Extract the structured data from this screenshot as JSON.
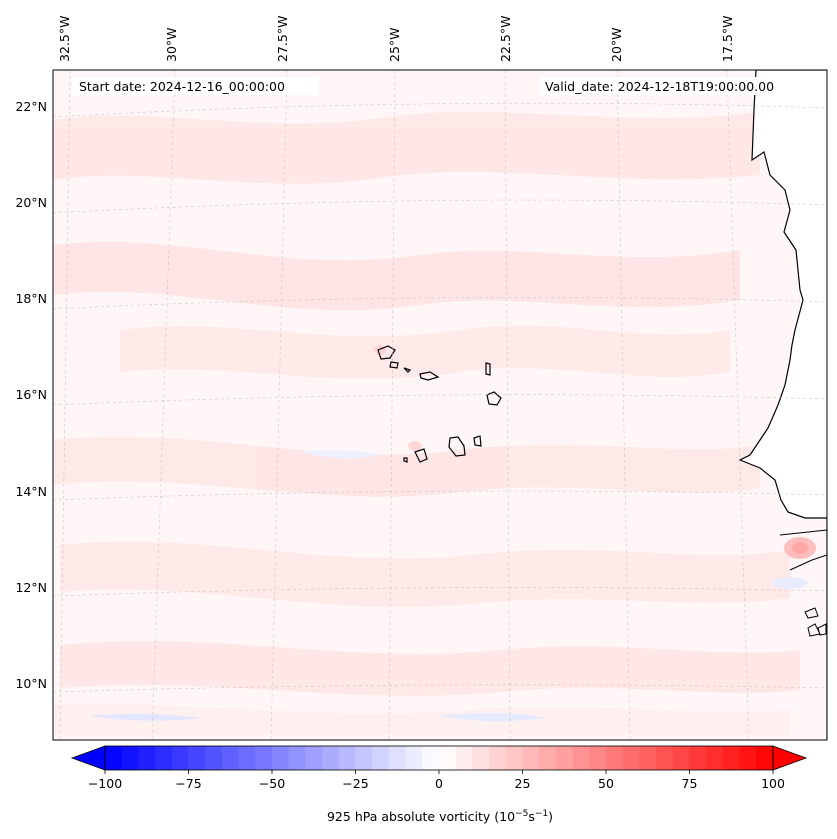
{
  "map": {
    "start_date": "Start date: 2024-12-16_00:00:00",
    "valid_date": "Valid_date: 2024-12-18T19:00:00.00",
    "lon_labels": [
      "32.5°W",
      "30°W",
      "27.5°W",
      "25°W",
      "22.5°W",
      "20°W",
      "17.5°W"
    ],
    "lat_labels": [
      "22°N",
      "20°N",
      "18°N",
      "16°N",
      "14°N",
      "12°N",
      "10°N"
    ],
    "land_color": "#ffffff",
    "ocean_tint": "#fff5f5",
    "positive_color": "#ff0000",
    "negative_color": "#0000ff"
  },
  "colorbar": {
    "label_prefix": "925 hPa absolute vorticity (10",
    "label_exp1": "−5",
    "label_mid": "s",
    "label_exp2": "−1",
    "label_suffix": ")",
    "min": -100,
    "max": 100,
    "ticks": [
      "−100",
      "−75",
      "−50",
      "−25",
      "0",
      "25",
      "50",
      "75",
      "100"
    ],
    "tick_values": [
      -100,
      -75,
      -50,
      -25,
      0,
      25,
      50,
      75,
      100
    ]
  }
}
